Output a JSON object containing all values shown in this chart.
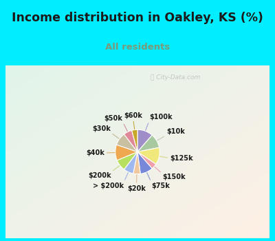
{
  "title": "Income distribution in Oakley, KS (%)",
  "subtitle": "All residents",
  "title_color": "#1a1a1a",
  "subtitle_color": "#7a9a7a",
  "bg_cyan": "#00eeff",
  "chart_bg": "#e8f5f0",
  "watermark": "City-Data.com",
  "labels": [
    "$100k",
    "$10k",
    "$125k",
    "$150k",
    "$75k",
    "$20k",
    "> $200k",
    "$200k",
    "$40k",
    "$30k",
    "$50k",
    "$60k"
  ],
  "values": [
    11,
    10,
    12,
    4,
    9,
    5,
    7,
    8,
    11,
    9,
    6,
    4
  ],
  "colors": [
    "#a08ec8",
    "#a8c8a0",
    "#f0e87a",
    "#f0a0aa",
    "#7888d8",
    "#f0c8a0",
    "#a0b8f0",
    "#b8e060",
    "#f0a850",
    "#c8c0a0",
    "#e08898",
    "#c8a828"
  ],
  "line_colors": [
    "#a0a0d8",
    "#c0c8b0",
    "#d8d890",
    "#e8a0b0",
    "#8898d0",
    "#e0b890",
    "#a0b0e8",
    "#c0d880",
    "#e0b070",
    "#c0b898",
    "#d09098",
    "#c0a840"
  ],
  "figsize": [
    4.0,
    3.5
  ],
  "dpi": 100
}
